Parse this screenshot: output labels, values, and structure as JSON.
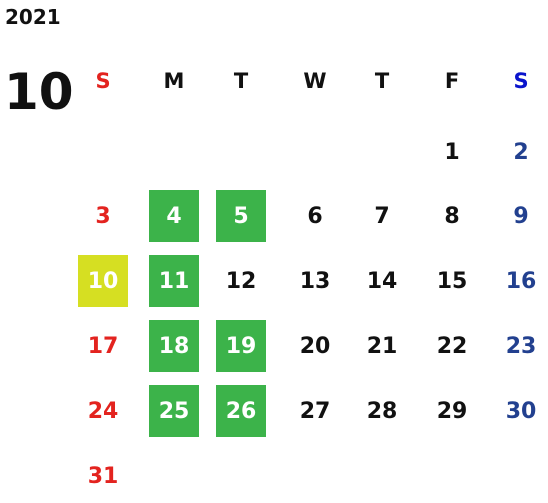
{
  "year": "2021",
  "month": "10",
  "weekdays": [
    "S",
    "M",
    "T",
    "W",
    "T",
    "F",
    "S"
  ],
  "weeks": [
    [
      null,
      null,
      null,
      null,
      null,
      1,
      2
    ],
    [
      3,
      4,
      5,
      6,
      7,
      8,
      9
    ],
    [
      10,
      11,
      12,
      13,
      14,
      15,
      16
    ],
    [
      17,
      18,
      19,
      20,
      21,
      22,
      23
    ],
    [
      24,
      25,
      26,
      27,
      28,
      29,
      30
    ],
    [
      31,
      null,
      null,
      null,
      null,
      null,
      null
    ]
  ],
  "highlights": [
    {
      "color": "#3cb34a",
      "days": [
        4,
        5,
        11,
        18,
        19,
        25,
        26
      ]
    },
    {
      "color": "#d6df22",
      "days": [
        10
      ]
    }
  ],
  "colors": {
    "sunday": "#e3231f",
    "saturday_header": "#0a14cc",
    "saturday": "#22408f",
    "weekday": "#111111",
    "highlighted_text": "#ffffff"
  }
}
